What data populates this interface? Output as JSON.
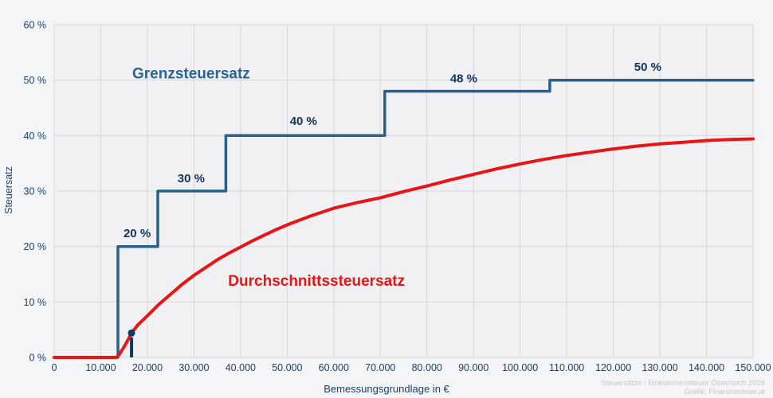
{
  "attribution": {
    "line1": "Steuersätze / Einkommensteuer Österreich 2026",
    "line2": "Grafik: Finanzrechner.at"
  },
  "colors": {
    "page_bg": "#f4f5f7",
    "plot_bg": "#f1f1f3",
    "grid": "#d6d7da",
    "step_line": "#2b608a",
    "avg_line": "#e91414",
    "tick_label": "#1e3f66",
    "rate_label": "#12335c",
    "marker": "#123a5e",
    "blue_series_label": "#2a6496",
    "attribution_text": "#c6c7ca"
  },
  "chart_data": {
    "type": "line",
    "title": "",
    "xlabel": "Bemessungsgrundlage in €",
    "ylabel": "Steuersatz",
    "xlim": [
      0,
      150000
    ],
    "ylim": [
      0,
      60
    ],
    "grid": true,
    "legend_position": "inline-labels",
    "x_ticks": [
      {
        "value": 0,
        "label": "0"
      },
      {
        "value": 10000,
        "label": "10.000"
      },
      {
        "value": 20000,
        "label": "20.000"
      },
      {
        "value": 30000,
        "label": "30.000"
      },
      {
        "value": 40000,
        "label": "40.000"
      },
      {
        "value": 50000,
        "label": "50.000"
      },
      {
        "value": 60000,
        "label": "60.000"
      },
      {
        "value": 70000,
        "label": "70.000"
      },
      {
        "value": 80000,
        "label": "80.000"
      },
      {
        "value": 90000,
        "label": "90.000"
      },
      {
        "value": 100000,
        "label": "100.000"
      },
      {
        "value": 110000,
        "label": "110.000"
      },
      {
        "value": 120000,
        "label": "120.000"
      },
      {
        "value": 130000,
        "label": "130.000"
      },
      {
        "value": 140000,
        "label": "140.000"
      },
      {
        "value": 150000,
        "label": "150.000"
      }
    ],
    "y_ticks": [
      {
        "value": 0,
        "label": "0 %"
      },
      {
        "value": 10,
        "label": "10 %"
      },
      {
        "value": 20,
        "label": "20 %"
      },
      {
        "value": 30,
        "label": "30 %"
      },
      {
        "value": 40,
        "label": "40 %"
      },
      {
        "value": 50,
        "label": "50 %"
      },
      {
        "value": 60,
        "label": "60 %"
      }
    ],
    "series": [
      {
        "name": "Grenzsteuersatz",
        "kind": "step",
        "color": "#2b608a",
        "label": {
          "text": "Grenzsteuersatz",
          "x": 29400,
          "y": 50.3,
          "size": 19
        },
        "points": [
          [
            0,
            0
          ],
          [
            13691,
            0
          ],
          [
            13691,
            20
          ],
          [
            22241,
            20
          ],
          [
            22241,
            30
          ],
          [
            36842,
            30
          ],
          [
            36842,
            40
          ],
          [
            70953,
            40
          ],
          [
            70953,
            48
          ],
          [
            106376,
            48
          ],
          [
            106376,
            50
          ],
          [
            150000,
            50
          ]
        ]
      },
      {
        "name": "Durchschnittssteuersatz",
        "kind": "smooth",
        "color": "#e91414",
        "label": {
          "text": "Durchschnittssteuersatz",
          "x": 56300,
          "y": 12.9,
          "size": 19
        },
        "points": [
          [
            0,
            0
          ],
          [
            13400,
            0
          ],
          [
            14000,
            0.6
          ],
          [
            15000,
            1.9
          ],
          [
            16000,
            3.4
          ],
          [
            16600,
            4.4
          ],
          [
            18000,
            5.9
          ],
          [
            20000,
            7.5
          ],
          [
            22500,
            9.6
          ],
          [
            25000,
            11.4
          ],
          [
            27500,
            13.2
          ],
          [
            30000,
            14.8
          ],
          [
            32500,
            16.2
          ],
          [
            35000,
            17.6
          ],
          [
            37500,
            18.8
          ],
          [
            40000,
            19.9
          ],
          [
            42500,
            21.0
          ],
          [
            45000,
            22.0
          ],
          [
            47500,
            23.0
          ],
          [
            50000,
            23.9
          ],
          [
            55000,
            25.5
          ],
          [
            60000,
            26.9
          ],
          [
            65000,
            27.9
          ],
          [
            70000,
            28.8
          ],
          [
            75000,
            29.9
          ],
          [
            80000,
            30.9
          ],
          [
            85000,
            32.0
          ],
          [
            90000,
            33.0
          ],
          [
            95000,
            34.0
          ],
          [
            100000,
            34.9
          ],
          [
            105000,
            35.7
          ],
          [
            110000,
            36.4
          ],
          [
            115000,
            37.0
          ],
          [
            120000,
            37.6
          ],
          [
            125000,
            38.1
          ],
          [
            130000,
            38.5
          ],
          [
            135000,
            38.8
          ],
          [
            140000,
            39.1
          ],
          [
            145000,
            39.3
          ],
          [
            150000,
            39.4
          ]
        ]
      }
    ],
    "rate_labels": [
      {
        "text": "20 %",
        "x": 17800,
        "y": 21.7
      },
      {
        "text": "30 %",
        "x": 29400,
        "y": 31.6
      },
      {
        "text": "40 %",
        "x": 53500,
        "y": 41.9
      },
      {
        "text": "48 %",
        "x": 87900,
        "y": 49.6
      },
      {
        "text": "50 %",
        "x": 127400,
        "y": 51.7
      }
    ],
    "marker": {
      "x": 16600,
      "dot_y": 4.4,
      "line_from": 0,
      "line_to": 3.6
    }
  }
}
